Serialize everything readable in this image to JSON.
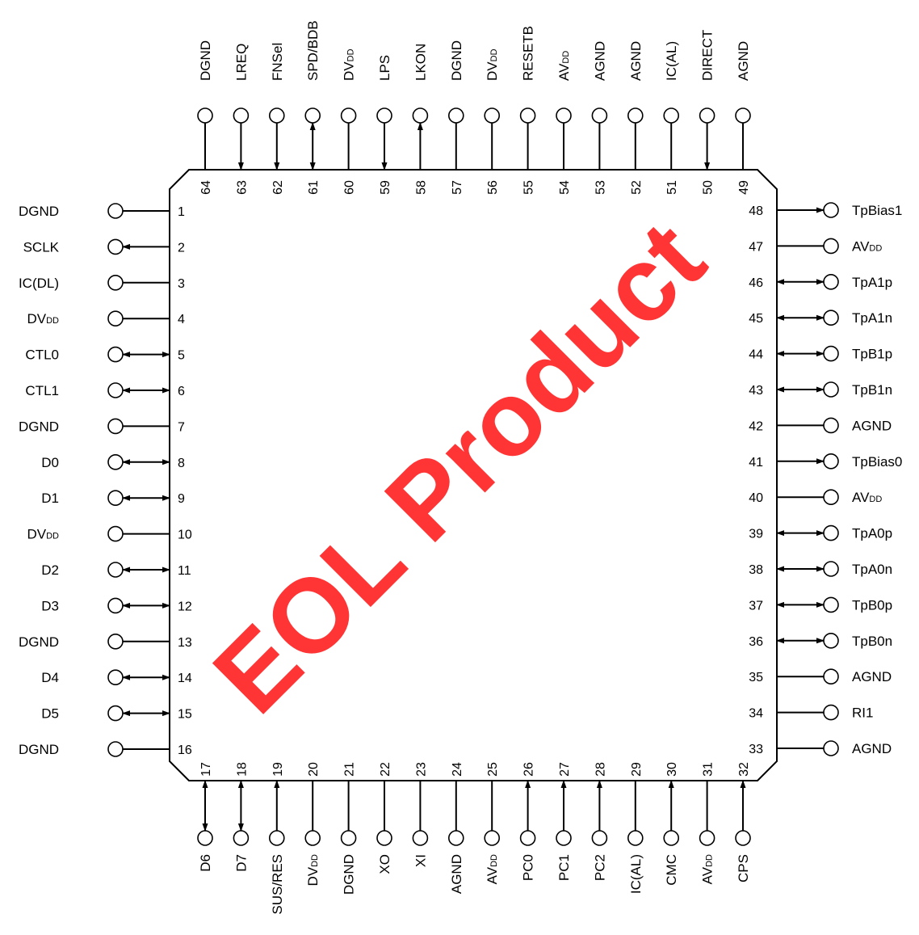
{
  "watermark": "EOL Product",
  "colors": {
    "watermark": "#ff1a1a",
    "line": "#000000"
  },
  "pins": {
    "left": [
      {
        "num": "1",
        "name": "DGND",
        "sub": "",
        "dir": "none"
      },
      {
        "num": "2",
        "name": "SCLK",
        "sub": "",
        "dir": "out"
      },
      {
        "num": "3",
        "name": "IC(DL)",
        "sub": "",
        "dir": "none"
      },
      {
        "num": "4",
        "name": "DV",
        "sub": "DD",
        "dir": "none"
      },
      {
        "num": "5",
        "name": "CTL0",
        "sub": "",
        "dir": "bi"
      },
      {
        "num": "6",
        "name": "CTL1",
        "sub": "",
        "dir": "bi"
      },
      {
        "num": "7",
        "name": "DGND",
        "sub": "",
        "dir": "none"
      },
      {
        "num": "8",
        "name": "D0",
        "sub": "",
        "dir": "bi"
      },
      {
        "num": "9",
        "name": "D1",
        "sub": "",
        "dir": "bi"
      },
      {
        "num": "10",
        "name": "DV",
        "sub": "DD",
        "dir": "none"
      },
      {
        "num": "11",
        "name": "D2",
        "sub": "",
        "dir": "bi"
      },
      {
        "num": "12",
        "name": "D3",
        "sub": "",
        "dir": "bi"
      },
      {
        "num": "13",
        "name": "DGND",
        "sub": "",
        "dir": "none"
      },
      {
        "num": "14",
        "name": "D4",
        "sub": "",
        "dir": "bi"
      },
      {
        "num": "15",
        "name": "D5",
        "sub": "",
        "dir": "bi"
      },
      {
        "num": "16",
        "name": "DGND",
        "sub": "",
        "dir": "none"
      }
    ],
    "bottom": [
      {
        "num": "17",
        "name": "D6",
        "sub": "",
        "dir": "bi"
      },
      {
        "num": "18",
        "name": "D7",
        "sub": "",
        "dir": "bi"
      },
      {
        "num": "19",
        "name": "SUS/RES",
        "sub": "",
        "dir": "in"
      },
      {
        "num": "20",
        "name": "DV",
        "sub": "DD",
        "dir": "none"
      },
      {
        "num": "21",
        "name": "DGND",
        "sub": "",
        "dir": "none"
      },
      {
        "num": "22",
        "name": "XO",
        "sub": "",
        "dir": "none"
      },
      {
        "num": "23",
        "name": "XI",
        "sub": "",
        "dir": "none"
      },
      {
        "num": "24",
        "name": "AGND",
        "sub": "",
        "dir": "none"
      },
      {
        "num": "25",
        "name": "AV",
        "sub": "DD",
        "dir": "none"
      },
      {
        "num": "26",
        "name": "PC0",
        "sub": "",
        "dir": "in"
      },
      {
        "num": "27",
        "name": "PC1",
        "sub": "",
        "dir": "in"
      },
      {
        "num": "28",
        "name": "PC2",
        "sub": "",
        "dir": "in"
      },
      {
        "num": "29",
        "name": "IC(AL)",
        "sub": "",
        "dir": "none"
      },
      {
        "num": "30",
        "name": "CMC",
        "sub": "",
        "dir": "in"
      },
      {
        "num": "31",
        "name": "AV",
        "sub": "DD",
        "dir": "none"
      },
      {
        "num": "32",
        "name": "CPS",
        "sub": "",
        "dir": "in"
      }
    ],
    "right": [
      {
        "num": "33",
        "name": "AGND",
        "sub": "",
        "dir": "none"
      },
      {
        "num": "34",
        "name": "RI1",
        "sub": "",
        "dir": "none"
      },
      {
        "num": "35",
        "name": "AGND",
        "sub": "",
        "dir": "none"
      },
      {
        "num": "36",
        "name": "TpB0n",
        "sub": "",
        "dir": "bi"
      },
      {
        "num": "37",
        "name": "TpB0p",
        "sub": "",
        "dir": "bi"
      },
      {
        "num": "38",
        "name": "TpA0n",
        "sub": "",
        "dir": "bi"
      },
      {
        "num": "39",
        "name": "TpA0p",
        "sub": "",
        "dir": "bi"
      },
      {
        "num": "40",
        "name": "AV",
        "sub": "DD",
        "dir": "none"
      },
      {
        "num": "41",
        "name": "TpBias0",
        "sub": "",
        "dir": "out"
      },
      {
        "num": "42",
        "name": "AGND",
        "sub": "",
        "dir": "none"
      },
      {
        "num": "43",
        "name": "TpB1n",
        "sub": "",
        "dir": "bi"
      },
      {
        "num": "44",
        "name": "TpB1p",
        "sub": "",
        "dir": "bi"
      },
      {
        "num": "45",
        "name": "TpA1n",
        "sub": "",
        "dir": "bi"
      },
      {
        "num": "46",
        "name": "TpA1p",
        "sub": "",
        "dir": "bi"
      },
      {
        "num": "47",
        "name": "AV",
        "sub": "DD",
        "dir": "none"
      },
      {
        "num": "48",
        "name": "TpBias1",
        "sub": "",
        "dir": "out"
      }
    ],
    "top": [
      {
        "num": "49",
        "name": "AGND",
        "sub": "",
        "dir": "none"
      },
      {
        "num": "50",
        "name": "DIRECT",
        "sub": "",
        "dir": "in"
      },
      {
        "num": "51",
        "name": "IC(AL)",
        "sub": "",
        "dir": "none"
      },
      {
        "num": "52",
        "name": "AGND",
        "sub": "",
        "dir": "none"
      },
      {
        "num": "53",
        "name": "AGND",
        "sub": "",
        "dir": "none"
      },
      {
        "num": "54",
        "name": "AV",
        "sub": "DD",
        "dir": "none"
      },
      {
        "num": "55",
        "name": "RESETB",
        "sub": "",
        "dir": "none"
      },
      {
        "num": "56",
        "name": "DV",
        "sub": "DD",
        "dir": "none"
      },
      {
        "num": "57",
        "name": "DGND",
        "sub": "",
        "dir": "none"
      },
      {
        "num": "58",
        "name": "LKON",
        "sub": "",
        "dir": "out"
      },
      {
        "num": "59",
        "name": "LPS",
        "sub": "",
        "dir": "in"
      },
      {
        "num": "60",
        "name": "DV",
        "sub": "DD",
        "dir": "none"
      },
      {
        "num": "61",
        "name": "SPD/BDB",
        "sub": "",
        "dir": "bi"
      },
      {
        "num": "62",
        "name": "FNSel",
        "sub": "",
        "dir": "in"
      },
      {
        "num": "63",
        "name": "LREQ",
        "sub": "",
        "dir": "in"
      },
      {
        "num": "64",
        "name": "DGND",
        "sub": "",
        "dir": "none"
      }
    ]
  }
}
